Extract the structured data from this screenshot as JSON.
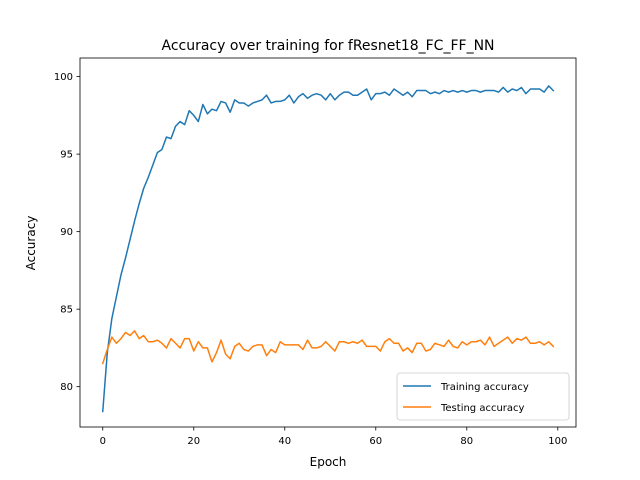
{
  "chart_data": {
    "type": "line",
    "title": "Accuracy over training for fResnet18_FC_FF_NN",
    "xlabel": "Epoch",
    "ylabel": "Accuracy",
    "xlim": [
      -5,
      104
    ],
    "ylim": [
      77.4,
      101.2
    ],
    "xticks": [
      0,
      20,
      40,
      60,
      80,
      100
    ],
    "yticks": [
      80,
      85,
      90,
      95,
      100
    ],
    "grid": false,
    "legend_position": "lower-right",
    "x": [
      0,
      1,
      2,
      3,
      4,
      5,
      6,
      7,
      8,
      9,
      10,
      11,
      12,
      13,
      14,
      15,
      16,
      17,
      18,
      19,
      20,
      21,
      22,
      23,
      24,
      25,
      26,
      27,
      28,
      29,
      30,
      31,
      32,
      33,
      34,
      35,
      36,
      37,
      38,
      39,
      40,
      41,
      42,
      43,
      44,
      45,
      46,
      47,
      48,
      49,
      50,
      51,
      52,
      53,
      54,
      55,
      56,
      57,
      58,
      59,
      60,
      61,
      62,
      63,
      64,
      65,
      66,
      67,
      68,
      69,
      70,
      71,
      72,
      73,
      74,
      75,
      76,
      77,
      78,
      79,
      80,
      81,
      82,
      83,
      84,
      85,
      86,
      87,
      88,
      89,
      90,
      91,
      92,
      93,
      94,
      95,
      96,
      97,
      98,
      99
    ],
    "series": [
      {
        "name": "Training accuracy",
        "color": "#1f77b4",
        "values": [
          78.4,
          82.2,
          84.4,
          85.8,
          87.2,
          88.3,
          89.5,
          90.7,
          91.8,
          92.8,
          93.5,
          94.3,
          95.1,
          95.3,
          96.1,
          96.0,
          96.8,
          97.1,
          96.9,
          97.8,
          97.5,
          97.1,
          98.2,
          97.6,
          97.9,
          97.8,
          98.4,
          98.3,
          97.7,
          98.5,
          98.3,
          98.3,
          98.1,
          98.3,
          98.4,
          98.5,
          98.8,
          98.3,
          98.4,
          98.4,
          98.5,
          98.8,
          98.3,
          98.7,
          98.9,
          98.6,
          98.8,
          98.9,
          98.8,
          98.5,
          98.9,
          98.5,
          98.8,
          99.0,
          99.0,
          98.8,
          98.8,
          99.0,
          99.2,
          98.5,
          98.9,
          98.9,
          99.0,
          98.8,
          99.2,
          99.0,
          98.8,
          99.0,
          98.7,
          99.1,
          99.1,
          99.1,
          98.9,
          99.0,
          98.9,
          99.1,
          99.0,
          99.1,
          99.0,
          99.1,
          99.0,
          99.1,
          99.1,
          99.0,
          99.1,
          99.1,
          99.1,
          99.0,
          99.3,
          99.0,
          99.2,
          99.1,
          99.3,
          98.9,
          99.2,
          99.2,
          99.2,
          99.0,
          99.4,
          99.1
        ]
      },
      {
        "name": "Testing accuracy",
        "color": "#ff7f0e",
        "values": [
          81.5,
          82.4,
          83.2,
          82.8,
          83.1,
          83.5,
          83.3,
          83.6,
          83.1,
          83.3,
          82.9,
          82.9,
          83.0,
          82.8,
          82.5,
          83.1,
          82.8,
          82.5,
          83.1,
          83.1,
          82.3,
          82.9,
          82.5,
          82.5,
          81.6,
          82.2,
          83.0,
          82.1,
          81.8,
          82.6,
          82.8,
          82.4,
          82.3,
          82.6,
          82.7,
          82.7,
          82.0,
          82.4,
          82.2,
          82.9,
          82.7,
          82.7,
          82.7,
          82.7,
          82.4,
          83.0,
          82.5,
          82.5,
          82.6,
          82.9,
          82.6,
          82.3,
          82.9,
          82.9,
          82.8,
          82.9,
          82.8,
          83.0,
          82.6,
          82.6,
          82.6,
          82.3,
          82.9,
          83.1,
          82.8,
          82.8,
          82.3,
          82.5,
          82.2,
          82.8,
          82.8,
          82.3,
          82.4,
          82.8,
          82.7,
          82.6,
          83.0,
          82.6,
          82.5,
          82.9,
          82.7,
          82.9,
          82.9,
          83.0,
          82.7,
          83.2,
          82.6,
          82.8,
          83.0,
          83.2,
          82.8,
          83.1,
          83.0,
          83.2,
          82.8,
          82.8,
          82.9,
          82.7,
          82.9,
          82.6
        ]
      }
    ]
  }
}
